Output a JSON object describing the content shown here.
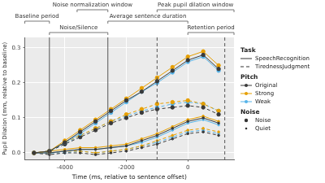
{
  "chart_data": {
    "type": "line",
    "x_label": "Time (ms, relative to sentence offset)",
    "y_label": "Pupil Dilation (mm, relative to baseline)",
    "x": [
      -5000,
      -4500,
      -4000,
      -3500,
      -3000,
      -2500,
      -2000,
      -1500,
      -1000,
      -500,
      0,
      500,
      1000
    ],
    "xlim": [
      -5300,
      1500
    ],
    "xticks": [
      -4000,
      -2000,
      0
    ],
    "ylim": [
      -0.02,
      0.33
    ],
    "yticks": [
      {
        "value": 0,
        "label": "0.0"
      },
      0.1,
      0.2,
      0.3
    ],
    "grid": true,
    "legend": "right",
    "legend_groups": [
      {
        "title": "Task",
        "entries": [
          "SpeechRecognition",
          "TirednessJudgment"
        ]
      },
      {
        "title": "Pitch",
        "entries": [
          "Original",
          "Strong",
          "Weak"
        ]
      },
      {
        "title": "Noise",
        "entries": [
          "Noise",
          "Quiet"
        ]
      }
    ],
    "series": [
      {
        "task": "SpeechRecognition",
        "pitch": "Original",
        "noise": "Noise",
        "color": "#3a3a3a",
        "line_style": "solid",
        "marker": "circle",
        "values": [
          0,
          0.005,
          0.03,
          0.06,
          0.09,
          0.12,
          0.15,
          0.175,
          0.205,
          0.235,
          0.265,
          0.28,
          0.24
        ]
      },
      {
        "task": "SpeechRecognition",
        "pitch": "Strong",
        "noise": "Noise",
        "color": "#e69f00",
        "line_style": "solid",
        "marker": "circle",
        "values": [
          0,
          0.005,
          0.035,
          0.065,
          0.095,
          0.125,
          0.155,
          0.185,
          0.215,
          0.245,
          0.275,
          0.29,
          0.25
        ]
      },
      {
        "task": "SpeechRecognition",
        "pitch": "Weak",
        "noise": "Noise",
        "color": "#56b4e9",
        "line_style": "solid",
        "marker": "circle",
        "values": [
          0,
          0.005,
          0.03,
          0.055,
          0.085,
          0.115,
          0.145,
          0.175,
          0.2,
          0.23,
          0.26,
          0.275,
          0.235
        ]
      },
      {
        "task": "TirednessJudgment",
        "pitch": "Original",
        "noise": "Noise",
        "color": "#3a3a3a",
        "line_style": "dashed",
        "marker": "circle",
        "values": [
          0,
          0.005,
          0.025,
          0.045,
          0.065,
          0.085,
          0.1,
          0.115,
          0.125,
          0.13,
          0.135,
          0.13,
          0.11
        ]
      },
      {
        "task": "TirednessJudgment",
        "pitch": "Strong",
        "noise": "Noise",
        "color": "#e69f00",
        "line_style": "dashed",
        "marker": "circle",
        "values": [
          0,
          0.005,
          0.03,
          0.05,
          0.07,
          0.09,
          0.11,
          0.125,
          0.14,
          0.145,
          0.15,
          0.14,
          0.12
        ]
      },
      {
        "task": "TirednessJudgment",
        "pitch": "Weak",
        "noise": "Noise",
        "color": "#56b4e9",
        "line_style": "dashed",
        "marker": "circle",
        "values": [
          0,
          0.005,
          0.025,
          0.05,
          0.07,
          0.09,
          0.105,
          0.12,
          0.13,
          0.14,
          0.145,
          0.14,
          0.12
        ]
      },
      {
        "task": "SpeechRecognition",
        "pitch": "Original",
        "noise": "Quiet",
        "color": "#3a3a3a",
        "line_style": "solid",
        "marker": "dot",
        "values": [
          0,
          0,
          0.005,
          0.01,
          0.01,
          0.015,
          0.02,
          0.035,
          0.05,
          0.07,
          0.09,
          0.1,
          0.085
        ]
      },
      {
        "task": "SpeechRecognition",
        "pitch": "Strong",
        "noise": "Quiet",
        "color": "#e69f00",
        "line_style": "solid",
        "marker": "dot",
        "values": [
          0,
          0.005,
          0.01,
          0.015,
          0.015,
          0.02,
          0.025,
          0.04,
          0.055,
          0.075,
          0.095,
          0.105,
          0.09
        ]
      },
      {
        "task": "SpeechRecognition",
        "pitch": "Weak",
        "noise": "Quiet",
        "color": "#56b4e9",
        "line_style": "solid",
        "marker": "dot",
        "values": [
          0,
          0,
          0.005,
          0.01,
          0.01,
          0.015,
          0.02,
          0.03,
          0.045,
          0.065,
          0.085,
          0.095,
          0.08
        ]
      },
      {
        "task": "TirednessJudgment",
        "pitch": "Original",
        "noise": "Quiet",
        "color": "#3a3a3a",
        "line_style": "dashed",
        "marker": "dot",
        "values": [
          0,
          -0.005,
          0,
          0,
          -0.005,
          0,
          0.005,
          0.015,
          0.025,
          0.04,
          0.055,
          0.06,
          0.05
        ]
      },
      {
        "task": "TirednessJudgment",
        "pitch": "Strong",
        "noise": "Quiet",
        "color": "#e69f00",
        "line_style": "dashed",
        "marker": "dot",
        "values": [
          0,
          0,
          0.005,
          0.005,
          0,
          0.005,
          0.01,
          0.02,
          0.035,
          0.05,
          0.065,
          0.07,
          0.06
        ]
      },
      {
        "task": "TirednessJudgment",
        "pitch": "Weak",
        "noise": "Quiet",
        "color": "#56b4e9",
        "line_style": "dashed",
        "marker": "dot",
        "values": [
          0,
          0,
          0,
          0.005,
          0,
          0.005,
          0.01,
          0.02,
          0.03,
          0.045,
          0.06,
          0.065,
          0.055
        ]
      }
    ],
    "vlines": [
      {
        "x": -4500,
        "line_style": "solid"
      },
      {
        "x": -2600,
        "line_style": "solid"
      },
      {
        "x": -1000,
        "line_style": "dashed"
      },
      {
        "x": 1200,
        "line_style": "dashed"
      }
    ],
    "annotations": [
      {
        "text": "Noise normalization window",
        "start": -3600,
        "end": -2600
      },
      {
        "text": "Peak pupil dilation window",
        "start": -1000,
        "end": 1500
      },
      {
        "text": "Baseline period",
        "start": -5300,
        "end": -4500
      },
      {
        "text": "Average sentence duration",
        "start": -2600,
        "end": 0
      },
      {
        "text": "Noise/Silence",
        "start": -4500,
        "end": -2600
      },
      {
        "text": "Retention period",
        "start": 0,
        "end": 1500
      }
    ]
  }
}
